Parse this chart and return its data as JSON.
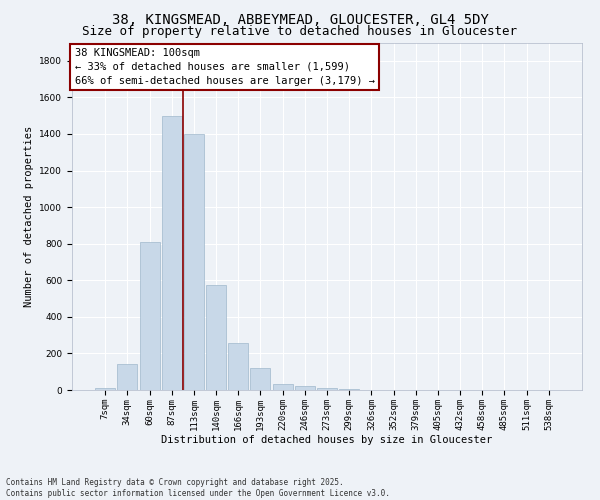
{
  "title_line1": "38, KINGSMEAD, ABBEYMEAD, GLOUCESTER, GL4 5DY",
  "title_line2": "Size of property relative to detached houses in Gloucester",
  "xlabel": "Distribution of detached houses by size in Gloucester",
  "ylabel": "Number of detached properties",
  "bar_labels": [
    "7sqm",
    "34sqm",
    "60sqm",
    "87sqm",
    "113sqm",
    "140sqm",
    "166sqm",
    "193sqm",
    "220sqm",
    "246sqm",
    "273sqm",
    "299sqm",
    "326sqm",
    "352sqm",
    "379sqm",
    "405sqm",
    "432sqm",
    "458sqm",
    "485sqm",
    "511sqm",
    "538sqm"
  ],
  "bar_values": [
    10,
    140,
    810,
    1500,
    1400,
    575,
    255,
    120,
    35,
    20,
    10,
    5,
    0,
    0,
    0,
    0,
    0,
    0,
    0,
    0,
    0
  ],
  "bar_color": "#c8d8e8",
  "bar_edgecolor": "#a0b8cc",
  "vline_pos": 3.5,
  "vline_color": "#8b0000",
  "annotation_text": "38 KINGSMEAD: 100sqm\n← 33% of detached houses are smaller (1,599)\n66% of semi-detached houses are larger (3,179) →",
  "annotation_box_color": "#ffffff",
  "annotation_box_edge": "#8b0000",
  "ylim": [
    0,
    1900
  ],
  "yticks": [
    0,
    200,
    400,
    600,
    800,
    1000,
    1200,
    1400,
    1600,
    1800
  ],
  "bg_color": "#eef2f7",
  "grid_color": "#ffffff",
  "footer_text": "Contains HM Land Registry data © Crown copyright and database right 2025.\nContains public sector information licensed under the Open Government Licence v3.0.",
  "title_fontsize": 10,
  "subtitle_fontsize": 9,
  "axis_label_fontsize": 7.5,
  "tick_fontsize": 6.5,
  "annotation_fontsize": 7.5,
  "footer_fontsize": 5.5
}
